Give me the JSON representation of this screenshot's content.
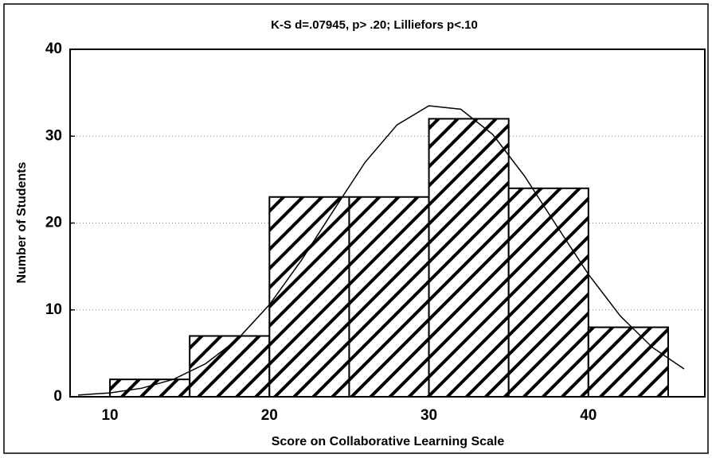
{
  "chart_data": {
    "type": "histogram",
    "title": "K-S d=.07945, p> .20; Lilliefors p<.10",
    "xlabel": "Score on Collaborative Learning Scale",
    "ylabel": "Number of Students",
    "bins": [
      10,
      15,
      20,
      25,
      30,
      35,
      40,
      45
    ],
    "counts": [
      2,
      7,
      23,
      23,
      32,
      24,
      8
    ],
    "curve": {
      "x": [
        8,
        10,
        12,
        14,
        16,
        18,
        20,
        22,
        24,
        26,
        28,
        30,
        32,
        34,
        36,
        38,
        40,
        42,
        44,
        46
      ],
      "y": [
        0.19,
        0.45,
        0.99,
        2.02,
        3.81,
        6.62,
        10.6,
        15.7,
        21.4,
        27.0,
        31.3,
        33.5,
        33.1,
        30.2,
        25.4,
        19.7,
        14.1,
        9.3,
        5.7,
        3.2
      ]
    },
    "xlim": [
      7.5,
      47.3
    ],
    "ylim": [
      0,
      40
    ],
    "xticks": [
      10,
      20,
      30,
      40
    ],
    "yticks": [
      0,
      10,
      20,
      30,
      40
    ],
    "grid": true
  }
}
